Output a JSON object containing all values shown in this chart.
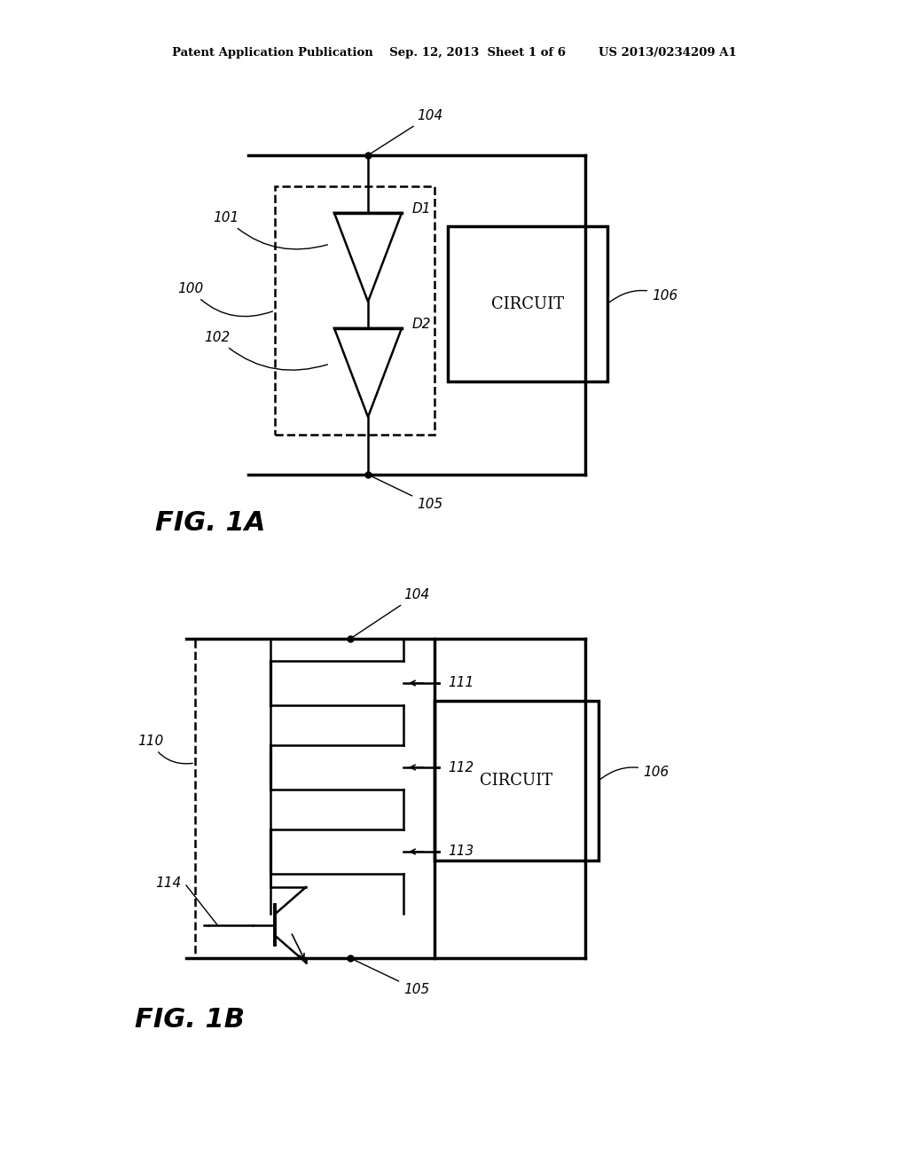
{
  "bg_color": "#ffffff",
  "line_color": "#000000",
  "header": "Patent Application Publication    Sep. 12, 2013  Sheet 1 of 6        US 2013/0234209 A1",
  "fig1a_label": "FIG. 1A",
  "fig1b_label": "FIG. 1B",
  "circuit_label": "CIRCUIT",
  "lw": 1.8,
  "lw_thick": 2.5
}
